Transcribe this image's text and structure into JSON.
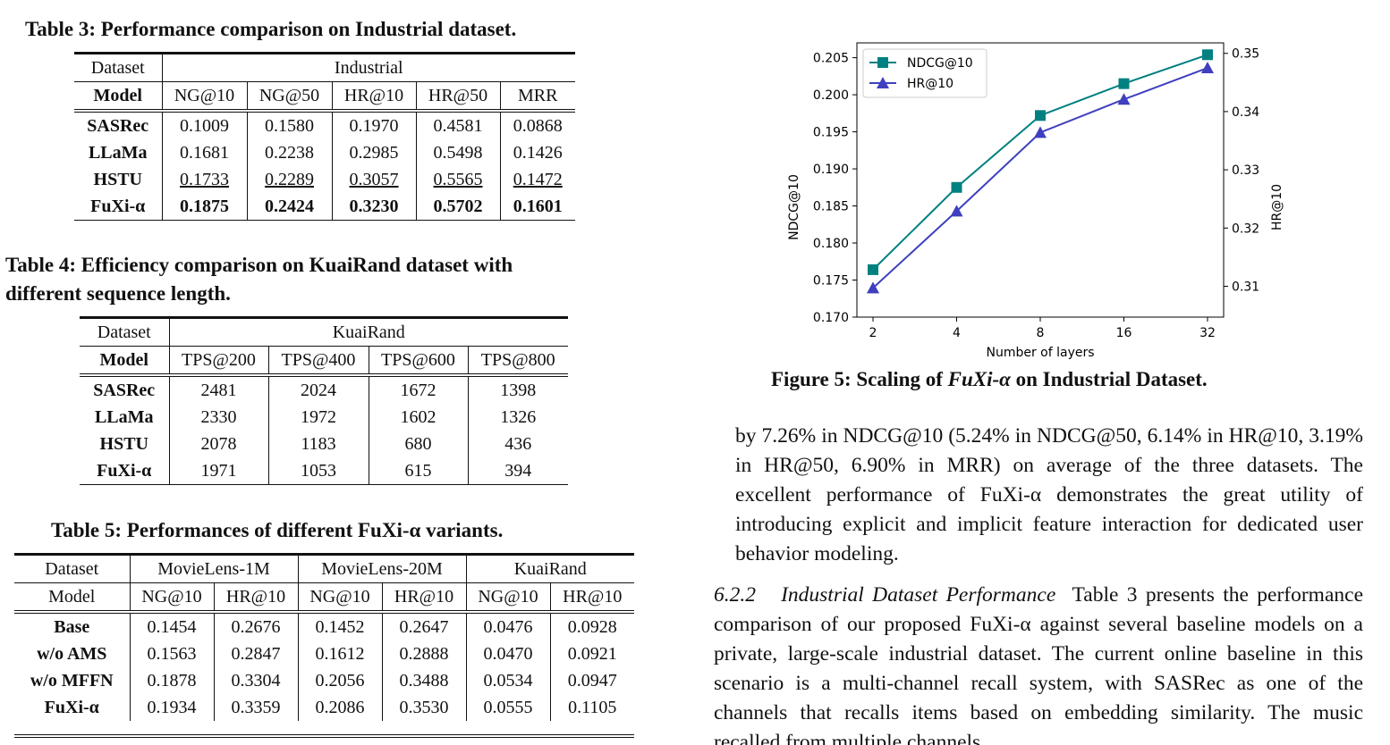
{
  "table3": {
    "caption": "Table 3: Performance comparison on Industrial dataset.",
    "dataset_label": "Dataset",
    "dataset_name": "Industrial",
    "model_label": "Model",
    "columns": [
      "NG@10",
      "NG@50",
      "HR@10",
      "HR@50",
      "MRR"
    ],
    "rows": [
      {
        "model": "SASRec",
        "values": [
          "0.1009",
          "0.1580",
          "0.1970",
          "0.4581",
          "0.0868"
        ]
      },
      {
        "model": "LLaMa",
        "values": [
          "0.1681",
          "0.2238",
          "0.2985",
          "0.5498",
          "0.1426"
        ]
      },
      {
        "model": "HSTU",
        "values": [
          "0.1733",
          "0.2289",
          "0.3057",
          "0.5565",
          "0.1472"
        ]
      },
      {
        "model": "FuXi-α",
        "values": [
          "0.1875",
          "0.2424",
          "0.3230",
          "0.5702",
          "0.1601"
        ]
      }
    ]
  },
  "table4": {
    "caption_line1": "Table 4: Efficiency comparison on KuaiRand dataset with",
    "caption_line2": "different sequence length.",
    "dataset_label": "Dataset",
    "dataset_name": "KuaiRand",
    "model_label": "Model",
    "columns": [
      "TPS@200",
      "TPS@400",
      "TPS@600",
      "TPS@800"
    ],
    "rows": [
      {
        "model": "SASRec",
        "values": [
          "2481",
          "2024",
          "1672",
          "1398"
        ]
      },
      {
        "model": "LLaMa",
        "values": [
          "2330",
          "1972",
          "1602",
          "1326"
        ]
      },
      {
        "model": "HSTU",
        "values": [
          "2078",
          "1183",
          "680",
          "436"
        ]
      },
      {
        "model": "FuXi-α",
        "values": [
          "1971",
          "1053",
          "615",
          "394"
        ]
      }
    ]
  },
  "table5": {
    "caption": "Table 5: Performances of different FuXi-α variants.",
    "dataset_label": "Dataset",
    "datasets": [
      "MovieLens-1M",
      "MovieLens-20M",
      "KuaiRand"
    ],
    "model_label": "Model",
    "columns": [
      "NG@10",
      "HR@10",
      "NG@10",
      "HR@10",
      "NG@10",
      "HR@10"
    ],
    "rows": [
      {
        "model": "Base",
        "values": [
          "0.1454",
          "0.2676",
          "0.1452",
          "0.2647",
          "0.0476",
          "0.0928"
        ]
      },
      {
        "model": "w/o AMS",
        "values": [
          "0.1563",
          "0.2847",
          "0.1612",
          "0.2888",
          "0.0470",
          "0.0921"
        ]
      },
      {
        "model": "w/o MFFN",
        "values": [
          "0.1878",
          "0.3304",
          "0.2056",
          "0.3488",
          "0.0534",
          "0.0947"
        ]
      },
      {
        "model": "FuXi-α",
        "values": [
          "0.1934",
          "0.3359",
          "0.2086",
          "0.3530",
          "0.0555",
          "0.1105"
        ]
      }
    ]
  },
  "figure5": {
    "caption_prefix": "Figure 5: Scaling of ",
    "caption_model": "FuXi-α",
    "caption_suffix": " on Industrial Dataset."
  },
  "chart_data": {
    "type": "line",
    "xlabel": "Number of layers",
    "ylabel": "NDCG@10",
    "y2label": "HR@10",
    "categories": [
      "2",
      "4",
      "8",
      "16",
      "32"
    ],
    "ylim": [
      0.17,
      0.207
    ],
    "y2lim": [
      0.3047,
      0.3518
    ],
    "yticks": [
      "0.170",
      "0.175",
      "0.180",
      "0.185",
      "0.190",
      "0.195",
      "0.200",
      "0.205"
    ],
    "y2ticks": [
      "0.31",
      "0.32",
      "0.33",
      "0.34",
      "0.35"
    ],
    "legend_position": "top-left",
    "grid": false,
    "series": [
      {
        "name": "NDCG@10",
        "axis": "left",
        "marker": "square",
        "color": "#008080",
        "values": [
          0.1764,
          0.1875,
          0.1972,
          0.2015,
          0.2054
        ]
      },
      {
        "name": "HR@10",
        "axis": "right",
        "marker": "triangle",
        "color": "#3f3fbf",
        "values": [
          0.3097,
          0.3229,
          0.3364,
          0.3421,
          0.3475
        ]
      }
    ]
  },
  "body_text": {
    "para1": "by 7.26% in NDCG@10 (5.24% in NDCG@50, 6.14% in HR@10, 3.19% in HR@50, 6.90% in MRR) on average of the three datasets. The excellent performance of FuXi-α demonstrates the great utility of introducing explicit and implicit feature interaction for dedicated user behavior modeling.",
    "section_number": "6.2.2",
    "section_title": "Industrial Dataset Performance",
    "para2": "Table 3 presents the performance comparison of our proposed FuXi-α against several baseline models on a private, large-scale industrial dataset. The current online baseline in this scenario is a multi-channel recall system, with SASRec as one of the channels that recalls items based on embedding similarity. The music recalled from multiple channels"
  }
}
